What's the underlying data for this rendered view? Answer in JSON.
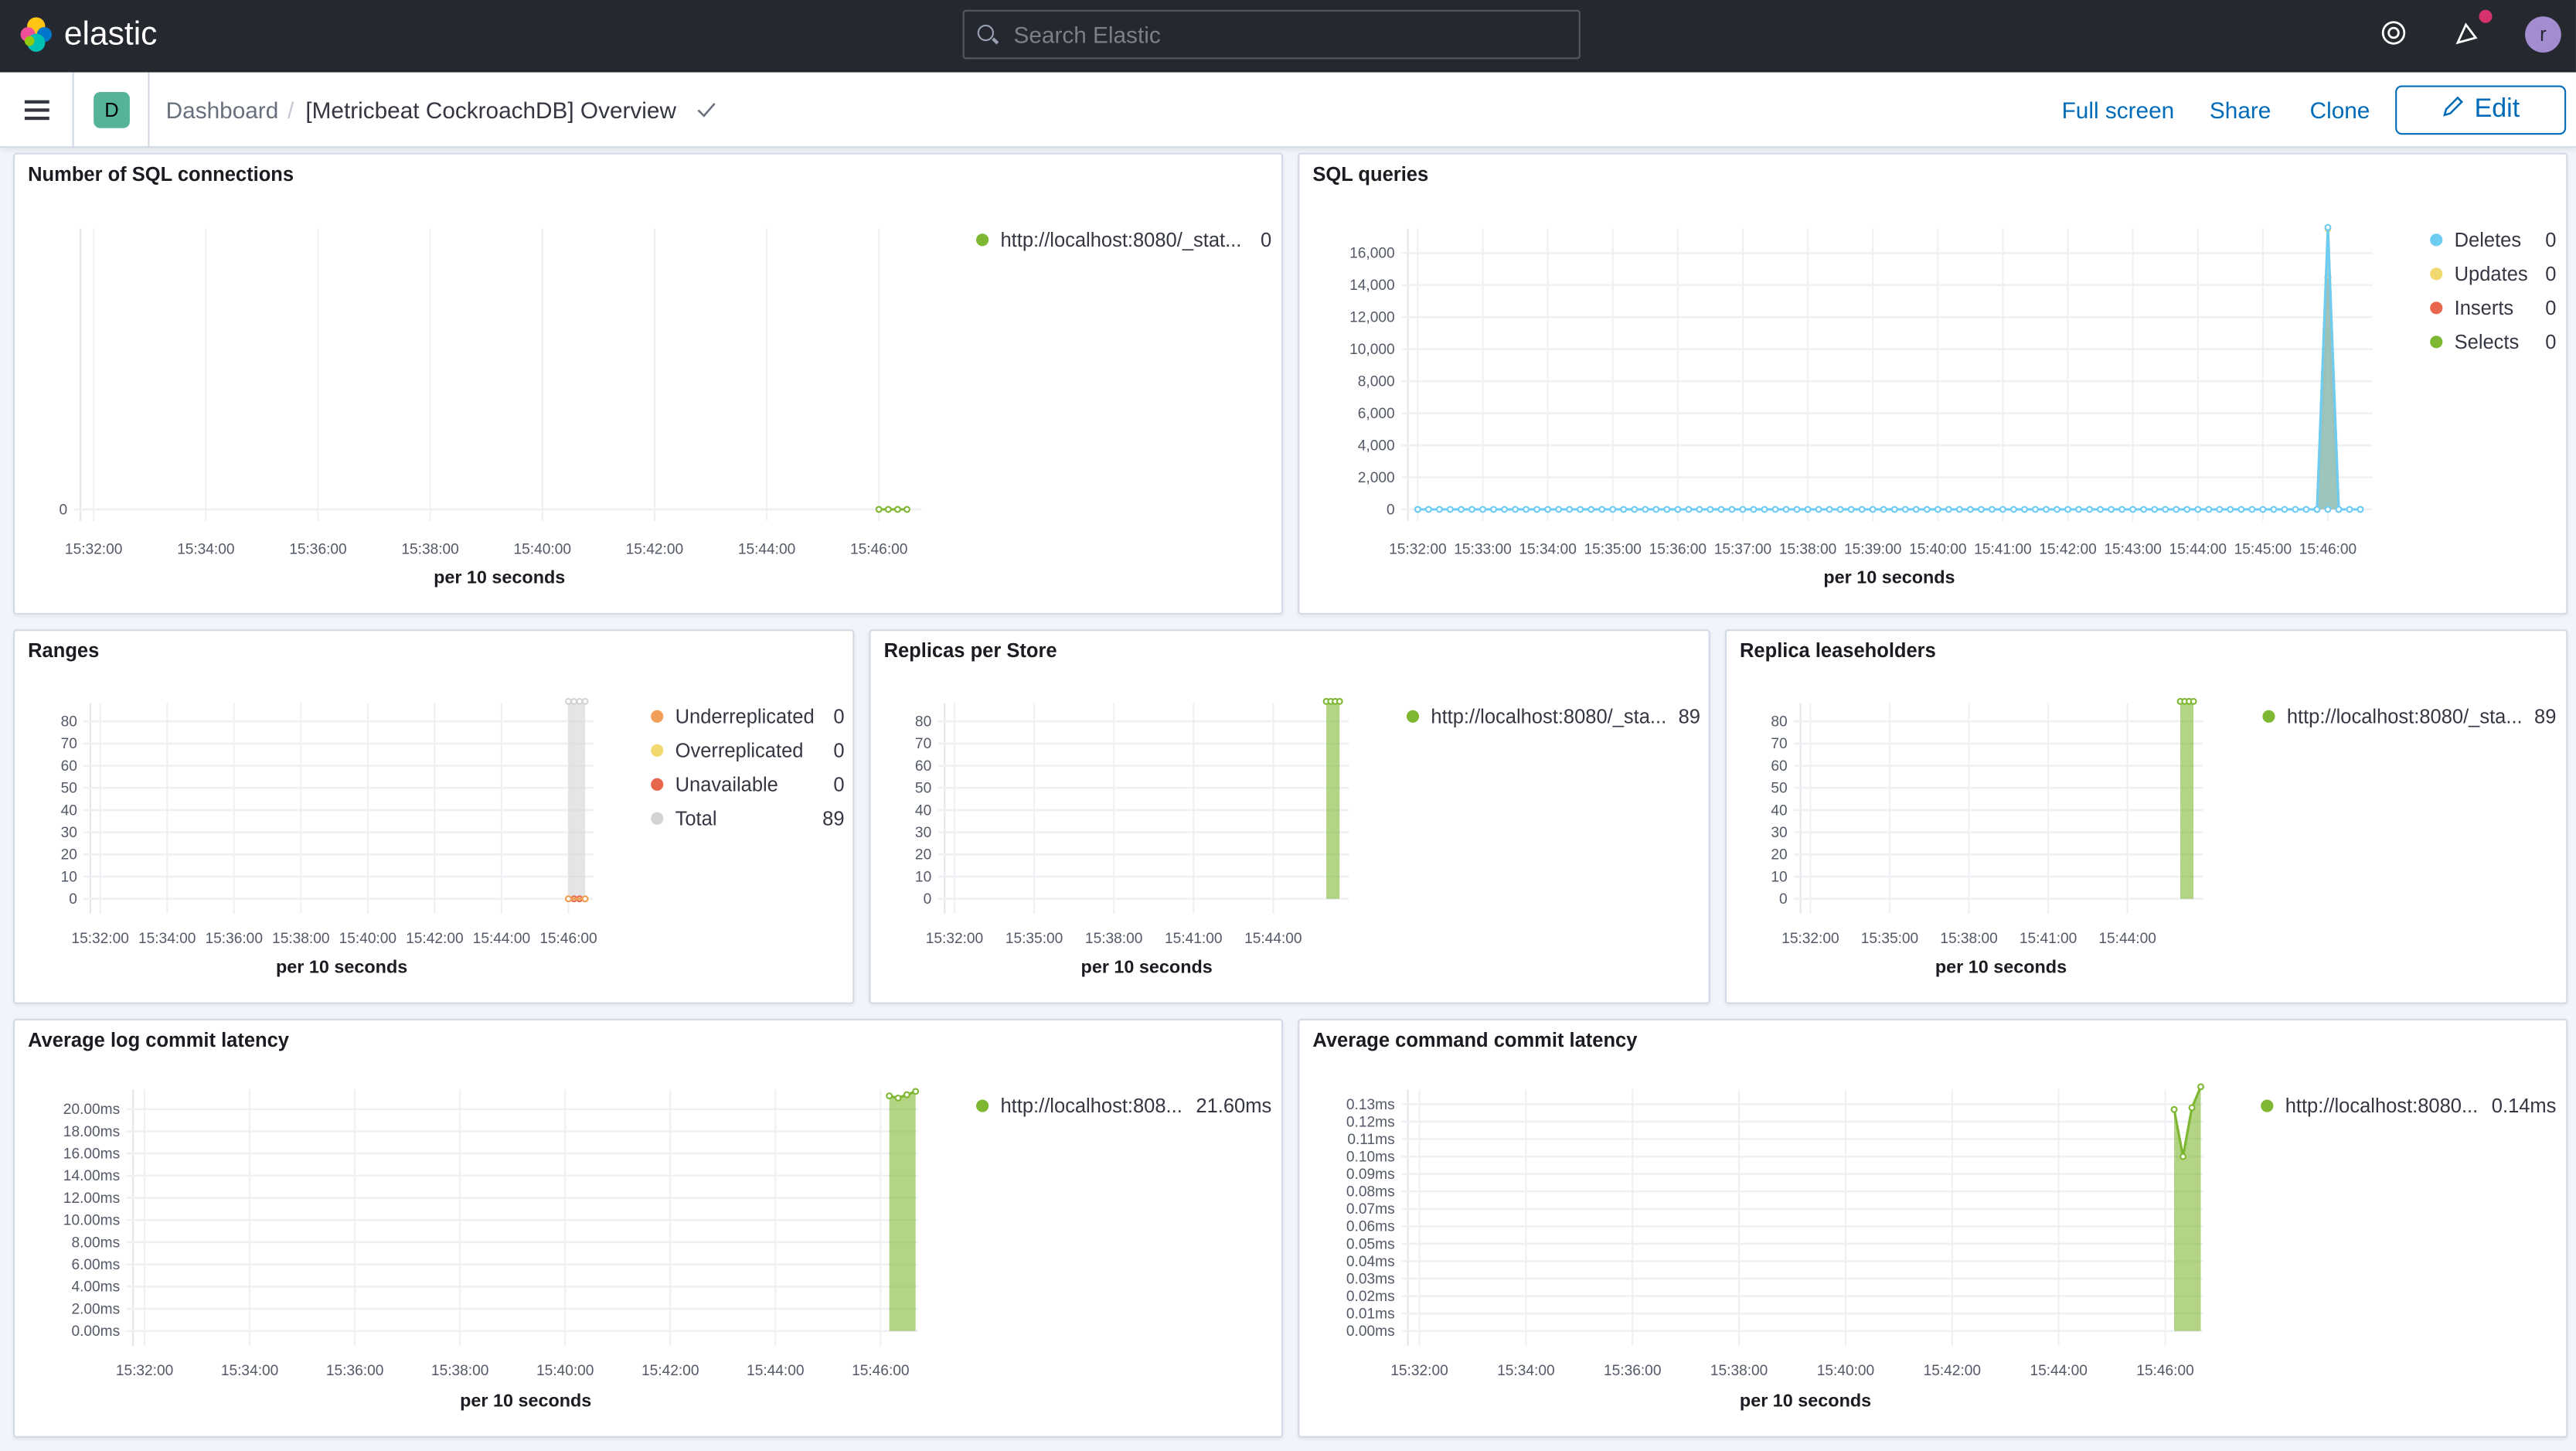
{
  "app": {
    "brand": "elastic",
    "search_placeholder": "Search Elastic",
    "avatar_initial": "r",
    "space_initial": "D"
  },
  "breadcrumb": {
    "root": "Dashboard",
    "separator": "/",
    "current": "[Metricbeat CockroachDB] Overview"
  },
  "actions": {
    "full_screen": "Full screen",
    "share": "Share",
    "clone": "Clone",
    "edit": "Edit"
  },
  "chart_data": [
    {
      "title": "Number of SQL connections",
      "type": "line",
      "xlabel": "per 10 seconds",
      "x_ticks": [
        "15:32:00",
        "15:34:00",
        "15:36:00",
        "15:38:00",
        "15:40:00",
        "15:42:00",
        "15:44:00",
        "15:46:00"
      ],
      "y_ticks": [
        {
          "v": 0,
          "label": "0"
        }
      ],
      "series": [
        {
          "name": "http://localhost:8080/_stat...",
          "legend_value": "0",
          "color": "#7eb732",
          "style": "line",
          "points": [
            [
              "15:46:00",
              0
            ],
            [
              "15:46:10",
              0
            ],
            [
              "15:46:20",
              0
            ],
            [
              "15:46:30",
              0
            ]
          ]
        }
      ]
    },
    {
      "title": "SQL queries",
      "type": "area",
      "xlabel": "per 10 seconds",
      "x_ticks": [
        "15:32:00",
        "15:33:00",
        "15:34:00",
        "15:35:00",
        "15:36:00",
        "15:37:00",
        "15:38:00",
        "15:39:00",
        "15:40:00",
        "15:41:00",
        "15:42:00",
        "15:43:00",
        "15:44:00",
        "15:45:00",
        "15:46:00"
      ],
      "y_ticks": [
        {
          "v": 0,
          "label": "0"
        },
        {
          "v": 2000,
          "label": "2,000"
        },
        {
          "v": 4000,
          "label": "4,000"
        },
        {
          "v": 6000,
          "label": "6,000"
        },
        {
          "v": 8000,
          "label": "8,000"
        },
        {
          "v": 10000,
          "label": "10,000"
        },
        {
          "v": 12000,
          "label": "12,000"
        },
        {
          "v": 14000,
          "label": "14,000"
        },
        {
          "v": 16000,
          "label": "16,000"
        }
      ],
      "legend": "right",
      "series": [
        {
          "name": "Deletes",
          "legend_value": "0",
          "color": "#6dccf1",
          "style": "area",
          "points": [
            [
              "15:32:00",
              0
            ],
            [
              "15:45:50",
              0
            ],
            [
              "15:46:00",
              17600
            ],
            [
              "15:46:10",
              0
            ],
            [
              "15:46:30",
              0
            ]
          ]
        },
        {
          "name": "Updates",
          "legend_value": "0",
          "color": "#f1d86f",
          "style": "area",
          "points": [
            [
              "15:45:50",
              0
            ],
            [
              "15:46:00",
              17500
            ],
            [
              "15:46:10",
              0
            ]
          ]
        },
        {
          "name": "Inserts",
          "legend_value": "0",
          "color": "#e7664c",
          "style": "area",
          "points": [
            [
              "15:45:50",
              0
            ],
            [
              "15:46:00",
              14500
            ],
            [
              "15:46:10",
              0
            ]
          ]
        },
        {
          "name": "Selects",
          "legend_value": "0",
          "color": "#7eb732",
          "style": "area",
          "points": [
            [
              "15:45:50",
              0
            ],
            [
              "15:46:00",
              11500
            ],
            [
              "15:46:10",
              0
            ]
          ]
        }
      ]
    },
    {
      "title": "Ranges",
      "type": "area",
      "xlabel": "per 10 seconds",
      "x_ticks": [
        "15:32:00",
        "15:34:00",
        "15:36:00",
        "15:38:00",
        "15:40:00",
        "15:42:00",
        "15:44:00",
        "15:46:00"
      ],
      "y_ticks": [
        {
          "v": 0,
          "label": "0"
        },
        {
          "v": 10,
          "label": "10"
        },
        {
          "v": 20,
          "label": "20"
        },
        {
          "v": 30,
          "label": "30"
        },
        {
          "v": 40,
          "label": "40"
        },
        {
          "v": 50,
          "label": "50"
        },
        {
          "v": 60,
          "label": "60"
        },
        {
          "v": 70,
          "label": "70"
        },
        {
          "v": 80,
          "label": "80"
        }
      ],
      "series": [
        {
          "name": "Underreplicated",
          "legend_value": "0",
          "color": "#f19f58",
          "style": "line",
          "points": [
            [
              "15:46:00",
              0
            ],
            [
              "15:46:30",
              0
            ]
          ]
        },
        {
          "name": "Overreplicated",
          "legend_value": "0",
          "color": "#f1d86f",
          "style": "line",
          "points": [
            [
              "15:46:00",
              0
            ],
            [
              "15:46:30",
              0
            ]
          ]
        },
        {
          "name": "Unavailable",
          "legend_value": "0",
          "color": "#e7664c",
          "style": "line",
          "points": [
            [
              "15:46:00",
              0
            ],
            [
              "15:46:10",
              0
            ],
            [
              "15:46:20",
              0
            ],
            [
              "15:46:30",
              0
            ]
          ]
        },
        {
          "name": "Total",
          "legend_value": "89",
          "color": "#d3d3d3",
          "style": "area",
          "points": [
            [
              "15:46:00",
              89
            ],
            [
              "15:46:10",
              89
            ],
            [
              "15:46:20",
              89
            ],
            [
              "15:46:30",
              89
            ]
          ]
        }
      ]
    },
    {
      "title": "Replicas per Store",
      "type": "area",
      "xlabel": "per 10 seconds",
      "x_ticks": [
        "15:32:00",
        "15:35:00",
        "15:38:00",
        "15:41:00",
        "15:44:00"
      ],
      "y_ticks": [
        {
          "v": 0,
          "label": "0"
        },
        {
          "v": 10,
          "label": "10"
        },
        {
          "v": 20,
          "label": "20"
        },
        {
          "v": 30,
          "label": "30"
        },
        {
          "v": 40,
          "label": "40"
        },
        {
          "v": 50,
          "label": "50"
        },
        {
          "v": 60,
          "label": "60"
        },
        {
          "v": 70,
          "label": "70"
        },
        {
          "v": 80,
          "label": "80"
        }
      ],
      "series": [
        {
          "name": "http://localhost:8080/_sta...",
          "legend_value": "89",
          "color": "#7eb732",
          "style": "area",
          "points": [
            [
              "15:46:00",
              89
            ],
            [
              "15:46:10",
              89
            ],
            [
              "15:46:20",
              89
            ],
            [
              "15:46:30",
              89
            ]
          ]
        }
      ]
    },
    {
      "title": "Replica leaseholders",
      "type": "area",
      "xlabel": "per 10 seconds",
      "x_ticks": [
        "15:32:00",
        "15:35:00",
        "15:38:00",
        "15:41:00",
        "15:44:00"
      ],
      "y_ticks": [
        {
          "v": 0,
          "label": "0"
        },
        {
          "v": 10,
          "label": "10"
        },
        {
          "v": 20,
          "label": "20"
        },
        {
          "v": 30,
          "label": "30"
        },
        {
          "v": 40,
          "label": "40"
        },
        {
          "v": 50,
          "label": "50"
        },
        {
          "v": 60,
          "label": "60"
        },
        {
          "v": 70,
          "label": "70"
        },
        {
          "v": 80,
          "label": "80"
        }
      ],
      "series": [
        {
          "name": "http://localhost:8080/_sta...",
          "legend_value": "89",
          "color": "#7eb732",
          "style": "area",
          "points": [
            [
              "15:46:00",
              89
            ],
            [
              "15:46:10",
              89
            ],
            [
              "15:46:20",
              89
            ],
            [
              "15:46:30",
              89
            ]
          ]
        }
      ]
    },
    {
      "title": "Average log commit latency",
      "type": "area",
      "xlabel": "per 10 seconds",
      "x_ticks": [
        "15:32:00",
        "15:34:00",
        "15:36:00",
        "15:38:00",
        "15:40:00",
        "15:42:00",
        "15:44:00",
        "15:46:00"
      ],
      "y_ticks": [
        {
          "v": 0,
          "label": "0.00ms"
        },
        {
          "v": 2,
          "label": "2.00ms"
        },
        {
          "v": 4,
          "label": "4.00ms"
        },
        {
          "v": 6,
          "label": "6.00ms"
        },
        {
          "v": 8,
          "label": "8.00ms"
        },
        {
          "v": 10,
          "label": "10.00ms"
        },
        {
          "v": 12,
          "label": "12.00ms"
        },
        {
          "v": 14,
          "label": "14.00ms"
        },
        {
          "v": 16,
          "label": "16.00ms"
        },
        {
          "v": 18,
          "label": "18.00ms"
        },
        {
          "v": 20,
          "label": "20.00ms"
        }
      ],
      "series": [
        {
          "name": "http://localhost:808...",
          "legend_value": "21.60ms",
          "color": "#7eb732",
          "style": "area",
          "points": [
            [
              "15:46:10",
              21.2
            ],
            [
              "15:46:20",
              21.0
            ],
            [
              "15:46:30",
              21.3
            ],
            [
              "15:46:40",
              21.6
            ]
          ]
        }
      ]
    },
    {
      "title": "Average command commit latency",
      "type": "area",
      "xlabel": "per 10 seconds",
      "x_ticks": [
        "15:32:00",
        "15:34:00",
        "15:36:00",
        "15:38:00",
        "15:40:00",
        "15:42:00",
        "15:44:00",
        "15:46:00"
      ],
      "y_ticks": [
        {
          "v": 0,
          "label": "0.00ms"
        },
        {
          "v": 0.01,
          "label": "0.01ms"
        },
        {
          "v": 0.02,
          "label": "0.02ms"
        },
        {
          "v": 0.03,
          "label": "0.03ms"
        },
        {
          "v": 0.04,
          "label": "0.04ms"
        },
        {
          "v": 0.05,
          "label": "0.05ms"
        },
        {
          "v": 0.06,
          "label": "0.06ms"
        },
        {
          "v": 0.07,
          "label": "0.07ms"
        },
        {
          "v": 0.08,
          "label": "0.08ms"
        },
        {
          "v": 0.09,
          "label": "0.09ms"
        },
        {
          "v": 0.1,
          "label": "0.10ms"
        },
        {
          "v": 0.11,
          "label": "0.11ms"
        },
        {
          "v": 0.12,
          "label": "0.12ms"
        },
        {
          "v": 0.13,
          "label": "0.13ms"
        }
      ],
      "series": [
        {
          "name": "http://localhost:8080...",
          "legend_value": "0.14ms",
          "color": "#7eb732",
          "style": "area",
          "points": [
            [
              "15:46:10",
              0.127
            ],
            [
              "15:46:20",
              0.1
            ],
            [
              "15:46:30",
              0.128
            ],
            [
              "15:46:40",
              0.14
            ]
          ]
        }
      ]
    }
  ]
}
